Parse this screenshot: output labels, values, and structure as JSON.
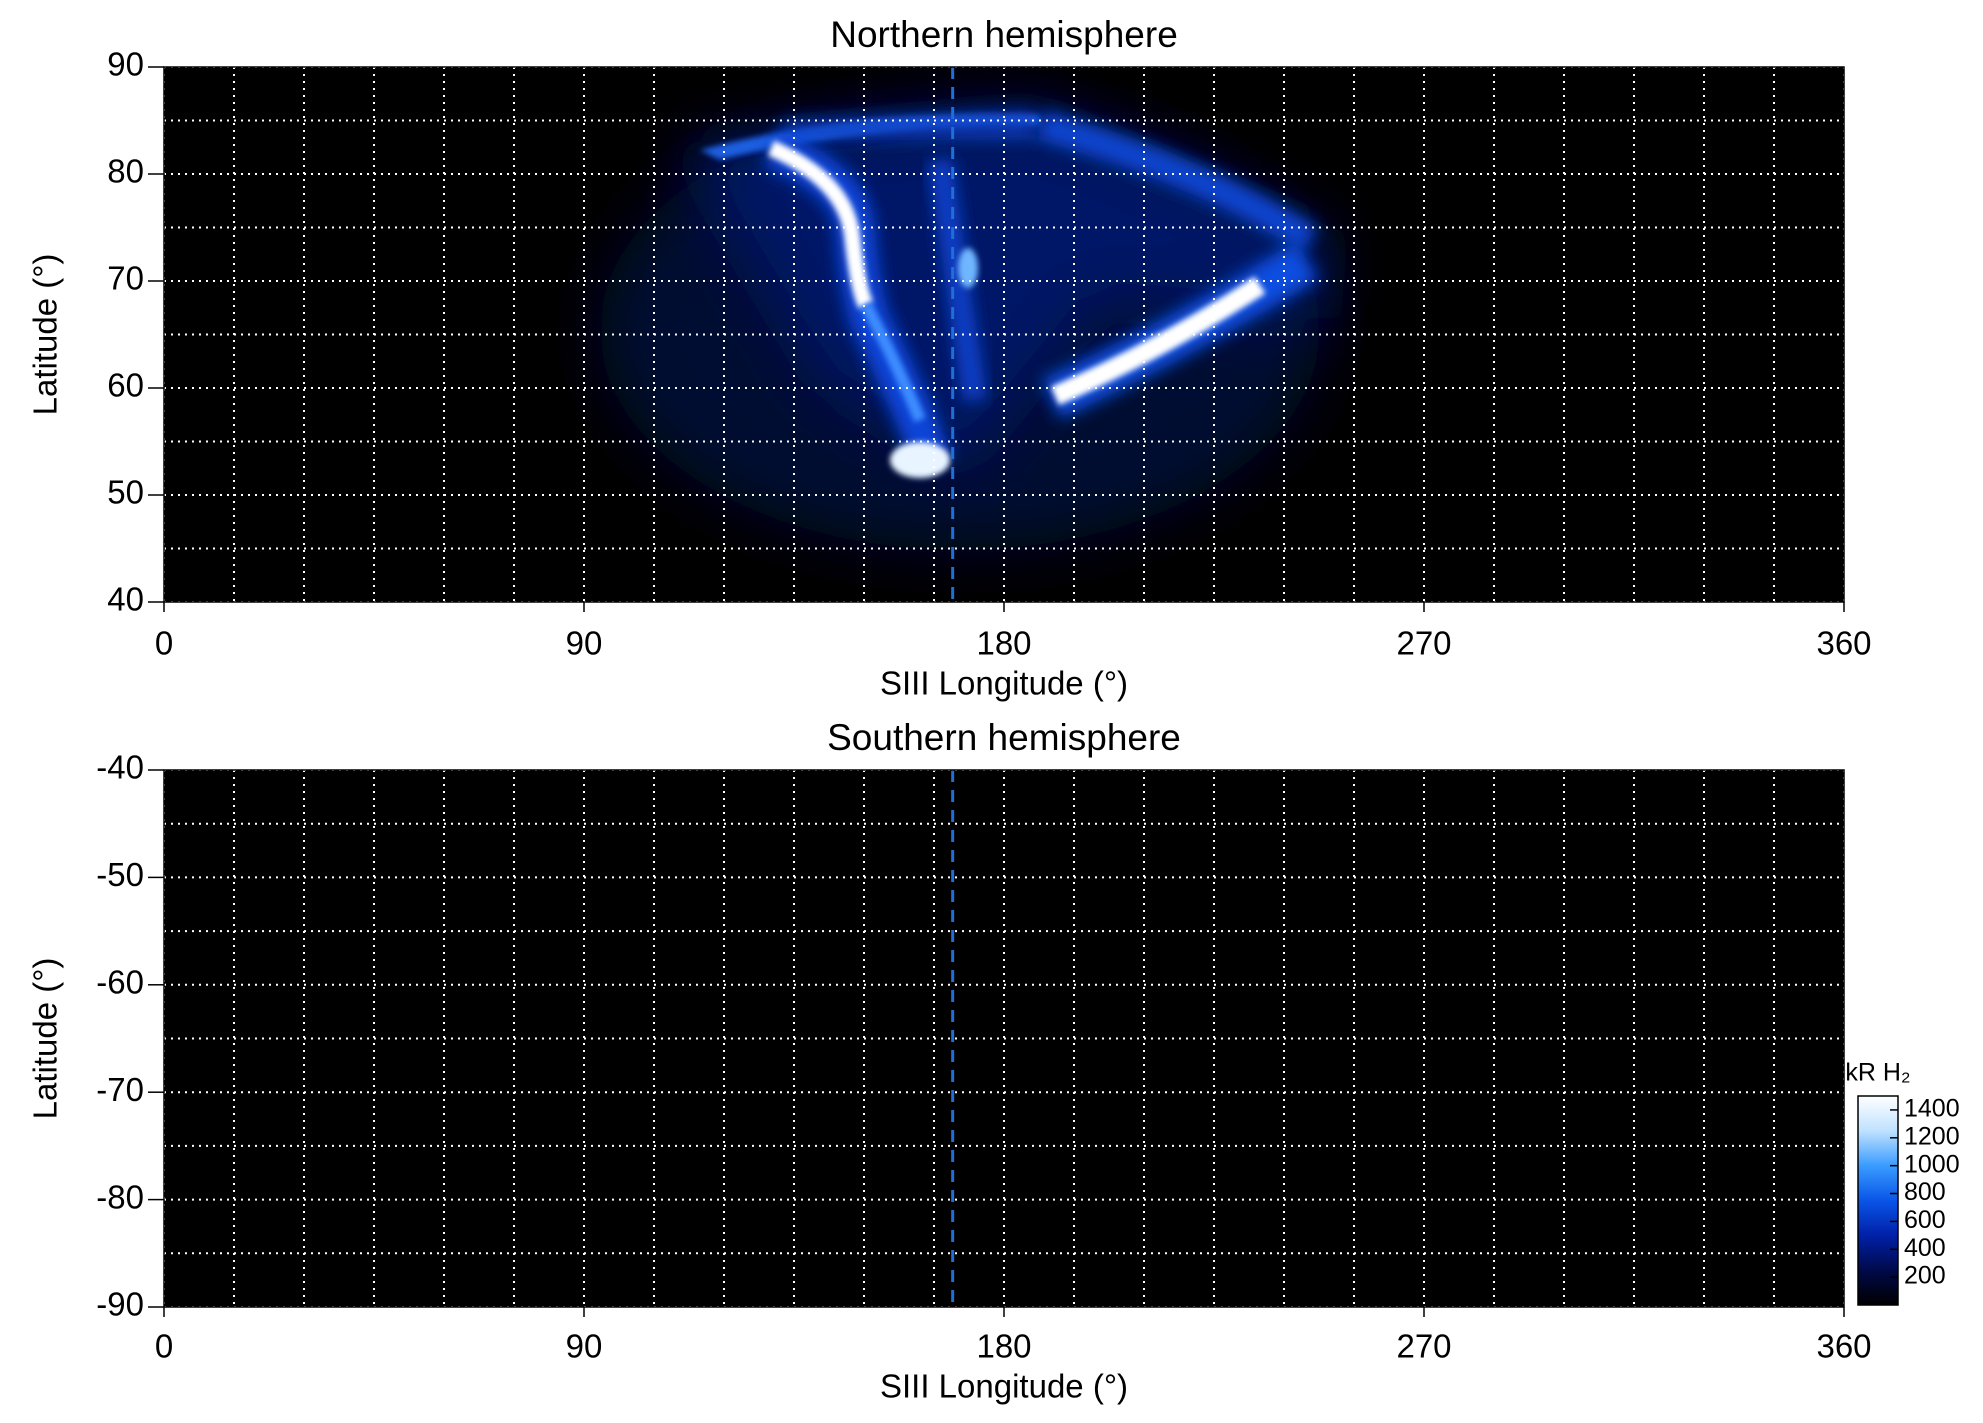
{
  "chart_data": [
    {
      "type": "image",
      "title": "Northern hemisphere",
      "x_label": "SIII Longitude (°)",
      "y_label": "Latitude (°)",
      "xlim": [
        0,
        360
      ],
      "xticks": [
        0,
        90,
        180,
        270,
        360
      ],
      "ylim": [
        40,
        90
      ],
      "yticks": [
        40,
        50,
        60,
        70,
        80,
        90
      ],
      "grid": true,
      "grid_color": "#ffffff",
      "xgrid": [
        0,
        15,
        30,
        45,
        60,
        75,
        90,
        105,
        120,
        135,
        150,
        165,
        180,
        195,
        210,
        225,
        240,
        255,
        270,
        285,
        300,
        315,
        330,
        345,
        360
      ],
      "ygrid": [
        40,
        45,
        50,
        55,
        60,
        65,
        70,
        75,
        80,
        85,
        90
      ],
      "reference_x": 169,
      "reference_color": "#1f6fd6",
      "background": "#000000"
    },
    {
      "type": "image",
      "title": "Southern hemisphere",
      "x_label": "SIII Longitude (°)",
      "y_label": "Latitude (°)",
      "xlim": [
        0,
        360
      ],
      "xticks": [
        0,
        90,
        180,
        270,
        360
      ],
      "ylim": [
        -90,
        -40
      ],
      "yticks": [
        -90,
        -80,
        -70,
        -60,
        -50,
        -40
      ],
      "grid": true,
      "grid_color": "#ffffff",
      "xgrid": [
        0,
        15,
        30,
        45,
        60,
        75,
        90,
        105,
        120,
        135,
        150,
        165,
        180,
        195,
        210,
        225,
        240,
        255,
        270,
        285,
        300,
        315,
        330,
        345,
        360
      ],
      "ygrid": [
        -90,
        -85,
        -80,
        -75,
        -70,
        -65,
        -60,
        -55,
        -50,
        -45,
        -40
      ],
      "reference_x": 169,
      "reference_color": "#1f6fd6",
      "background": "#000000",
      "colorbar": {
        "title": "kR H₂",
        "lim": [
          0,
          1500
        ],
        "ticks": [
          200,
          400,
          600,
          800,
          1000,
          1200,
          1400
        ],
        "colors": [
          "#000000",
          "#000a4a",
          "#0020a8",
          "#0a55e8",
          "#3a9cff",
          "#bfe2ff",
          "#ffffff"
        ]
      }
    }
  ]
}
